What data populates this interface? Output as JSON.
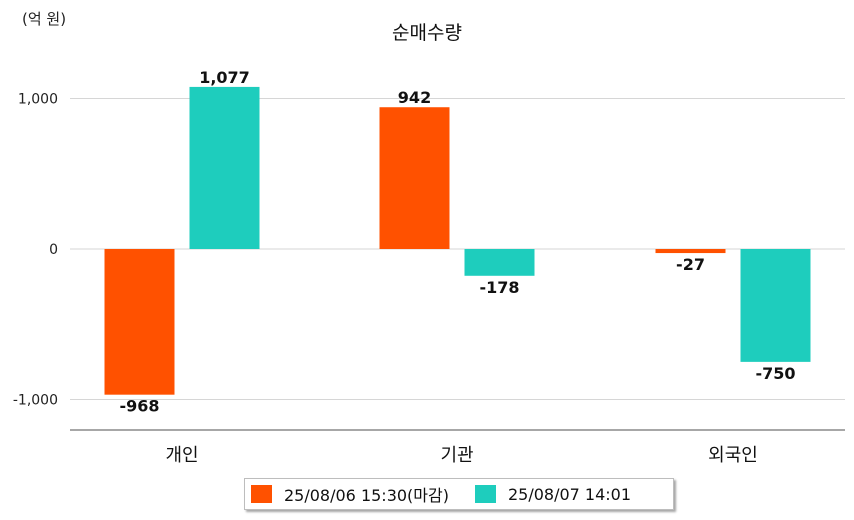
{
  "unit_label": "(억 원)",
  "chart_data": {
    "type": "bar",
    "title": "순매수량",
    "categories": [
      "개인",
      "기관",
      "외국인"
    ],
    "series": [
      {
        "name": "25/08/06 15:30(마감)",
        "values": [
          -968,
          942,
          -27
        ],
        "labels": [
          "-968",
          "942",
          "-27"
        ],
        "color": "#ff5100"
      },
      {
        "name": "25/08/07 14:01",
        "values": [
          1077,
          -178,
          -750
        ],
        "labels": [
          "1,077",
          "-178",
          "-750"
        ],
        "color": "#1ecdbd"
      }
    ],
    "y_ticks": [
      1000,
      0,
      -1000
    ],
    "y_tick_labels": [
      "1,000",
      "0",
      "-1,000"
    ],
    "ylim": [
      -1210,
      1330
    ],
    "grid": true,
    "legend_position": "bottom"
  }
}
